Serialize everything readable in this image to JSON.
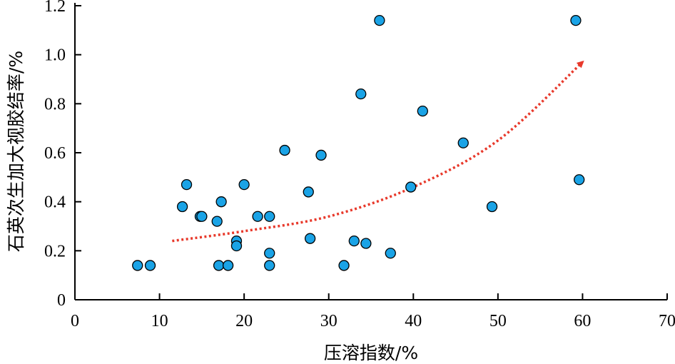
{
  "chart_data": {
    "type": "scatter",
    "xlabel": "压溶指数/%",
    "ylabel": "石英次生加大视胶结率/%",
    "xlim": [
      0,
      70
    ],
    "ylim": [
      0,
      1.2
    ],
    "x_ticks": [
      "0",
      "10",
      "20",
      "30",
      "40",
      "50",
      "60",
      "70"
    ],
    "y_ticks": [
      "0",
      "0.2",
      "0.4",
      "0.6",
      "0.8",
      "1.0",
      "1.2"
    ],
    "grid": false,
    "points": [
      {
        "x": 7.4,
        "y": 0.14
      },
      {
        "x": 8.9,
        "y": 0.14
      },
      {
        "x": 12.7,
        "y": 0.38
      },
      {
        "x": 13.2,
        "y": 0.47
      },
      {
        "x": 14.8,
        "y": 0.34
      },
      {
        "x": 15.0,
        "y": 0.34
      },
      {
        "x": 16.8,
        "y": 0.32
      },
      {
        "x": 17.0,
        "y": 0.14
      },
      {
        "x": 17.3,
        "y": 0.4
      },
      {
        "x": 18.1,
        "y": 0.14
      },
      {
        "x": 19.1,
        "y": 0.24
      },
      {
        "x": 19.1,
        "y": 0.22
      },
      {
        "x": 20.0,
        "y": 0.47
      },
      {
        "x": 21.6,
        "y": 0.34
      },
      {
        "x": 23.0,
        "y": 0.34
      },
      {
        "x": 23.0,
        "y": 0.19
      },
      {
        "x": 23.0,
        "y": 0.14
      },
      {
        "x": 24.8,
        "y": 0.61
      },
      {
        "x": 27.6,
        "y": 0.44
      },
      {
        "x": 27.8,
        "y": 0.25
      },
      {
        "x": 29.1,
        "y": 0.59
      },
      {
        "x": 31.8,
        "y": 0.14
      },
      {
        "x": 33.0,
        "y": 0.24
      },
      {
        "x": 33.8,
        "y": 0.84
      },
      {
        "x": 34.4,
        "y": 0.23
      },
      {
        "x": 36.0,
        "y": 1.14
      },
      {
        "x": 37.3,
        "y": 0.19
      },
      {
        "x": 39.7,
        "y": 0.46
      },
      {
        "x": 41.1,
        "y": 0.77
      },
      {
        "x": 45.9,
        "y": 0.64
      },
      {
        "x": 49.3,
        "y": 0.38
      },
      {
        "x": 59.2,
        "y": 1.14
      },
      {
        "x": 59.6,
        "y": 0.49
      }
    ],
    "trend": {
      "type": "exponential",
      "style": "dotted",
      "arrow": true,
      "x": [
        11.5,
        20,
        30,
        40,
        50,
        60
      ],
      "y": [
        0.24,
        0.28,
        0.34,
        0.46,
        0.65,
        0.97
      ]
    },
    "colors": {
      "point_fill": "#1aa3e6",
      "point_stroke": "#000000",
      "trend": "#e8392b"
    }
  }
}
